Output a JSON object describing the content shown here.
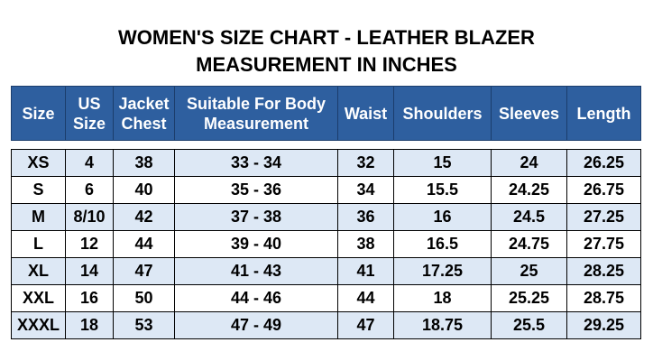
{
  "header": {
    "title": "WOMEN'S SIZE CHART - LEATHER BLAZER",
    "subtitle": "MEASUREMENT IN INCHES"
  },
  "table": {
    "columns": [
      "Size",
      "US Size",
      "Jacket Chest",
      "Suitable For Body Measurement",
      "Waist",
      "Shoulders",
      "Sleeves",
      "Length"
    ],
    "rows": [
      [
        "XS",
        "4",
        "38",
        "33 - 34",
        "32",
        "15",
        "24",
        "26.25"
      ],
      [
        "S",
        "6",
        "40",
        "35 - 36",
        "34",
        "15.5",
        "24.25",
        "26.75"
      ],
      [
        "M",
        "8/10",
        "42",
        "37 - 38",
        "36",
        "16",
        "24.5",
        "27.25"
      ],
      [
        "L",
        "12",
        "44",
        "39 - 40",
        "38",
        "16.5",
        "24.75",
        "27.75"
      ],
      [
        "XL",
        "14",
        "47",
        "41 - 43",
        "41",
        "17.25",
        "25",
        "28.25"
      ],
      [
        "XXL",
        "16",
        "50",
        "44 - 46",
        "44",
        "18",
        "25.25",
        "28.75"
      ],
      [
        "XXXL",
        "18",
        "53",
        "47 - 49",
        "47",
        "18.75",
        "25.5",
        "29.25"
      ]
    ]
  }
}
